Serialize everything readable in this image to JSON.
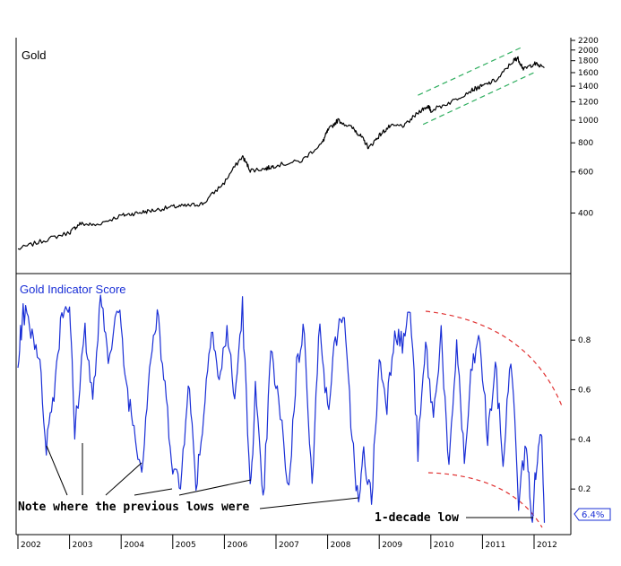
{
  "chart_data": [
    {
      "type": "line",
      "title": "Gold",
      "y_scale": "log",
      "ylim": [
        230,
        2300
      ],
      "y_ticks": [
        400,
        600,
        800,
        1000,
        1200,
        1400,
        1600,
        1800,
        2000,
        2200
      ],
      "x_range": [
        2002.0,
        2012.35
      ],
      "line_color": "#000000",
      "trend_channel_color": "#2fae5f",
      "series": [
        {
          "x": [
            2002.0,
            2002.5,
            2003.0,
            2003.2,
            2003.5,
            2004.0,
            2004.3,
            2004.6,
            2005.0,
            2005.3,
            2005.6,
            2006.0,
            2006.35,
            2006.5,
            2006.8,
            2007.0,
            2007.5,
            2007.9,
            2008.0,
            2008.2,
            2008.5,
            2008.65,
            2008.8,
            2009.0,
            2009.2,
            2009.5,
            2009.8,
            2009.95,
            2010.0,
            2010.4,
            2010.8,
            2011.0,
            2011.3,
            2011.6,
            2011.68,
            2011.8,
            2012.0,
            2012.2
          ],
          "values": [
            280,
            305,
            330,
            360,
            355,
            390,
            400,
            410,
            425,
            430,
            440,
            540,
            700,
            610,
            620,
            640,
            670,
            800,
            900,
            1000,
            920,
            850,
            760,
            860,
            940,
            950,
            1100,
            1150,
            1100,
            1200,
            1350,
            1400,
            1500,
            1800,
            1850,
            1650,
            1750,
            1680
          ]
        }
      ]
    },
    {
      "type": "line",
      "title": "Gold Indicator Score",
      "ylim": [
        0.02,
        1.05
      ],
      "y_ticks": [
        0.2,
        0.4,
        0.6,
        0.8
      ],
      "x_labels": [
        "2002",
        "2003",
        "2004",
        "2005",
        "2006",
        "2007",
        "2008",
        "2009",
        "2010",
        "2011",
        "2012"
      ],
      "line_color": "#1a2fd6",
      "boundary_color": "#e03030",
      "series": [
        {
          "x": [
            2002.0,
            2002.1,
            2002.25,
            2002.4,
            2002.55,
            2002.7,
            2002.85,
            2003.0,
            2003.1,
            2003.3,
            2003.45,
            2003.6,
            2003.75,
            2003.95,
            2004.1,
            2004.25,
            2004.4,
            2004.55,
            2004.7,
            2004.85,
            2005.0,
            2005.15,
            2005.3,
            2005.45,
            2005.6,
            2005.75,
            2005.9,
            2006.05,
            2006.2,
            2006.35,
            2006.5,
            2006.6,
            2006.75,
            2006.9,
            2007.05,
            2007.25,
            2007.4,
            2007.55,
            2007.7,
            2007.85,
            2008.0,
            2008.15,
            2008.3,
            2008.45,
            2008.6,
            2008.7,
            2008.85,
            2009.0,
            2009.15,
            2009.3,
            2009.45,
            2009.6,
            2009.75,
            2009.9,
            2010.05,
            2010.2,
            2010.35,
            2010.5,
            2010.65,
            2010.8,
            2010.95,
            2011.1,
            2011.25,
            2011.4,
            2011.55,
            2011.7,
            2011.85,
            2011.95,
            2012.05,
            2012.15,
            2012.2
          ],
          "values": [
            0.7,
            0.92,
            0.85,
            0.75,
            0.38,
            0.6,
            0.92,
            0.95,
            0.42,
            0.85,
            0.55,
            0.95,
            0.75,
            0.93,
            0.62,
            0.45,
            0.28,
            0.7,
            0.9,
            0.6,
            0.3,
            0.2,
            0.65,
            0.22,
            0.5,
            0.88,
            0.62,
            0.85,
            0.55,
            0.94,
            0.18,
            0.6,
            0.13,
            0.75,
            0.55,
            0.2,
            0.7,
            0.85,
            0.2,
            0.9,
            0.5,
            0.8,
            0.92,
            0.48,
            0.12,
            0.35,
            0.15,
            0.72,
            0.55,
            0.85,
            0.78,
            0.93,
            0.35,
            0.78,
            0.48,
            0.84,
            0.25,
            0.8,
            0.3,
            0.7,
            0.8,
            0.4,
            0.7,
            0.3,
            0.75,
            0.15,
            0.4,
            0.06,
            0.3,
            0.45,
            0.064
          ]
        }
      ],
      "annotations": {
        "note_text": "Note where the previous lows were",
        "low_label": "1-decade low",
        "current_value_label": "6.4%"
      }
    }
  ]
}
